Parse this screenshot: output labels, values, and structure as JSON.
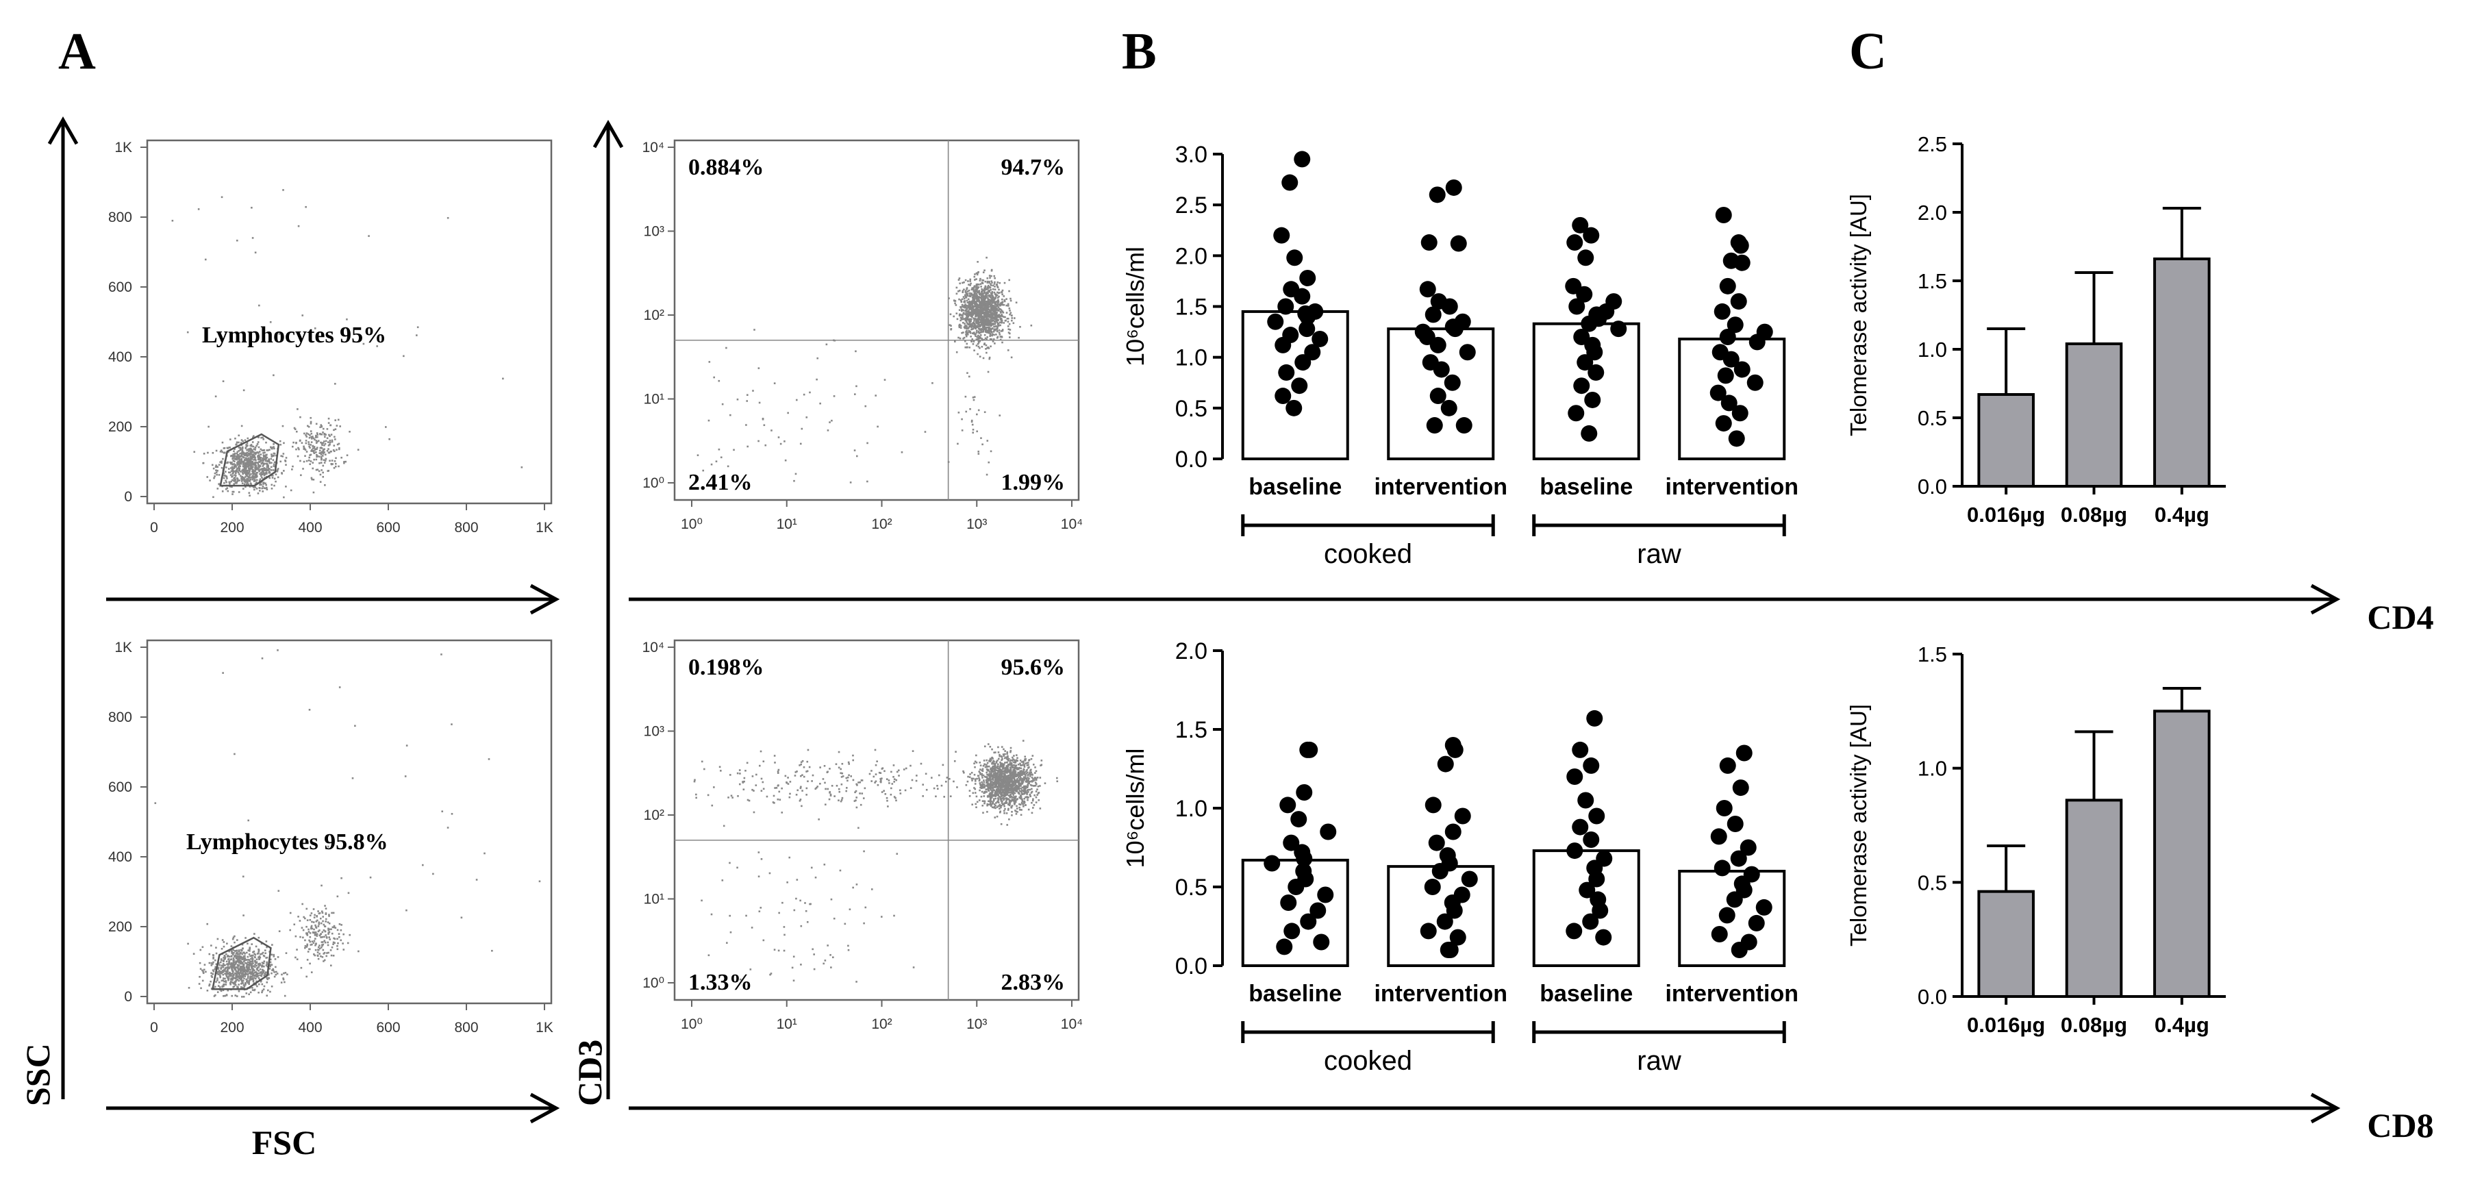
{
  "panels": {
    "a": "A",
    "b": "B",
    "c": "C"
  },
  "axis_titles": {
    "ssc": "SSC",
    "fsc": "FSC",
    "cd3": "CD3",
    "cd4": "CD4",
    "cd8": "CD8"
  },
  "chart_data": [
    {
      "id": "A-scatter-fsc-ssc-cd4",
      "type": "scatter",
      "title": "",
      "xlabel": "FSC",
      "ylabel": "SSC",
      "xlim": [
        0,
        1000
      ],
      "ylim": [
        0,
        1000
      ],
      "xticks": [
        "0",
        "200",
        "400",
        "600",
        "800",
        "1K"
      ],
      "yticks": [
        "0",
        "200",
        "400",
        "600",
        "800",
        "1K"
      ],
      "annotations": [
        "Lymphocytes 95%"
      ],
      "clusters": [
        {
          "cx": 240,
          "cy": 90,
          "sx": 40,
          "sy": 35,
          "n": 800
        },
        {
          "cx": 420,
          "cy": 140,
          "sx": 30,
          "sy": 40,
          "n": 220
        },
        {
          "cx": 400,
          "cy": 350,
          "sx": 300,
          "sy": 320,
          "n": 60
        }
      ]
    },
    {
      "id": "A-scatter-fsc-ssc-cd8",
      "type": "scatter",
      "title": "",
      "xlabel": "FSC",
      "ylabel": "SSC",
      "xlim": [
        0,
        1000
      ],
      "ylim": [
        0,
        1000
      ],
      "xticks": [
        "0",
        "200",
        "400",
        "600",
        "800",
        "1K"
      ],
      "yticks": [
        "0",
        "200",
        "400",
        "600",
        "800",
        "1K"
      ],
      "annotations": [
        "Lymphocytes 95.8%"
      ],
      "clusters": [
        {
          "cx": 220,
          "cy": 80,
          "sx": 40,
          "sy": 35,
          "n": 800
        },
        {
          "cx": 420,
          "cy": 180,
          "sx": 30,
          "sy": 40,
          "n": 200
        },
        {
          "cx": 450,
          "cy": 450,
          "sx": 300,
          "sy": 320,
          "n": 60
        }
      ]
    },
    {
      "id": "A-quadrant-cd3-cd4",
      "type": "scatter",
      "xlabel": "CD4",
      "ylabel": "CD3",
      "xlim": [
        0,
        4
      ],
      "ylim": [
        0,
        4
      ],
      "scale": "log",
      "xticks": [
        "10⁰",
        "10¹",
        "10²",
        "10³",
        "10⁴"
      ],
      "yticks": [
        "10⁰",
        "10¹",
        "10²",
        "10³",
        "10⁴"
      ],
      "quadrants": {
        "upper_left": "0.884%",
        "upper_right": "94.7%",
        "lower_left": "2.41%",
        "lower_right": "1.99%"
      },
      "gate": {
        "x": 2.7,
        "y": 1.7
      },
      "clusters": [
        {
          "cx": 3.05,
          "cy": 2.05,
          "sx": 0.12,
          "sy": 0.18,
          "n": 1400
        },
        {
          "cx": 1.0,
          "cy": 0.6,
          "sx": 0.7,
          "sy": 0.5,
          "n": 90
        },
        {
          "cx": 3.0,
          "cy": 0.8,
          "sx": 0.12,
          "sy": 0.3,
          "n": 30
        }
      ]
    },
    {
      "id": "A-quadrant-cd3-cd8",
      "type": "scatter",
      "xlabel": "CD8",
      "ylabel": "CD3",
      "xlim": [
        0,
        4
      ],
      "ylim": [
        0,
        4
      ],
      "scale": "log",
      "xticks": [
        "10⁰",
        "10¹",
        "10²",
        "10³",
        "10⁴"
      ],
      "yticks": [
        "10⁰",
        "10¹",
        "10²",
        "10³",
        "10⁴"
      ],
      "quadrants": {
        "upper_left": "0.198%",
        "upper_right": "95.6%",
        "lower_left": "1.33%",
        "lower_right": "2.83%"
      },
      "gate": {
        "x": 2.7,
        "y": 1.7
      },
      "clusters": [
        {
          "cx": 3.3,
          "cy": 2.4,
          "sx": 0.15,
          "sy": 0.15,
          "n": 1400
        },
        {
          "cx": 1.6,
          "cy": 2.4,
          "sx": 0.8,
          "sy": 0.15,
          "n": 260
        },
        {
          "cx": 1.0,
          "cy": 0.7,
          "sx": 0.6,
          "sy": 0.5,
          "n": 90
        }
      ]
    },
    {
      "id": "B-CD4",
      "type": "bar",
      "ylabel": "10⁶cells/ml",
      "ylim": [
        0,
        3.0
      ],
      "yticks": [
        "0.0",
        "0.5",
        "1.0",
        "1.5",
        "2.0",
        "2.5",
        "3.0"
      ],
      "categories": [
        "baseline",
        "intervention",
        "baseline",
        "intervention"
      ],
      "groups": [
        {
          "label": "cooked",
          "span": [
            0,
            1
          ]
        },
        {
          "label": "raw",
          "span": [
            2,
            3
          ]
        }
      ],
      "values": [
        1.45,
        1.28,
        1.33,
        1.18
      ],
      "points": [
        [
          2.95,
          2.72,
          2.2,
          1.98,
          1.78,
          1.67,
          1.6,
          1.5,
          1.45,
          1.43,
          1.4,
          1.35,
          1.28,
          1.22,
          1.18,
          1.12,
          1.05,
          0.95,
          0.85,
          0.72,
          0.62,
          0.5
        ],
        [
          2.67,
          2.6,
          2.13,
          2.12,
          1.67,
          1.55,
          1.5,
          1.42,
          1.35,
          1.3,
          1.28,
          1.25,
          1.2,
          1.12,
          1.05,
          0.95,
          0.88,
          0.75,
          0.62,
          0.5,
          0.33,
          0.33
        ],
        [
          2.3,
          2.2,
          2.13,
          1.98,
          1.7,
          1.62,
          1.55,
          1.5,
          1.45,
          1.42,
          1.38,
          1.33,
          1.28,
          1.2,
          1.12,
          1.05,
          0.95,
          0.85,
          0.72,
          0.58,
          0.45,
          0.25
        ],
        [
          2.4,
          2.13,
          2.1,
          1.95,
          1.93,
          1.7,
          1.55,
          1.45,
          1.32,
          1.25,
          1.2,
          1.15,
          1.05,
          0.98,
          0.88,
          0.82,
          0.75,
          0.65,
          0.55,
          0.45,
          0.35,
          0.2
        ]
      ]
    },
    {
      "id": "B-CD8",
      "type": "bar",
      "ylabel": "10⁶cells/ml",
      "ylim": [
        0,
        2.0
      ],
      "yticks": [
        "0.0",
        "0.5",
        "1.0",
        "1.5",
        "2.0"
      ],
      "categories": [
        "baseline",
        "intervention",
        "baseline",
        "intervention"
      ],
      "groups": [
        {
          "label": "cooked",
          "span": [
            0,
            1
          ]
        },
        {
          "label": "raw",
          "span": [
            2,
            3
          ]
        }
      ],
      "values": [
        0.67,
        0.63,
        0.73,
        0.6
      ],
      "points": [
        [
          1.37,
          1.37,
          1.1,
          1.02,
          0.93,
          0.85,
          0.78,
          0.72,
          0.68,
          0.65,
          0.6,
          0.55,
          0.5,
          0.45,
          0.4,
          0.35,
          0.28,
          0.22,
          0.15,
          0.12
        ],
        [
          1.4,
          1.37,
          1.28,
          1.02,
          0.95,
          0.85,
          0.78,
          0.7,
          0.65,
          0.6,
          0.55,
          0.5,
          0.45,
          0.4,
          0.35,
          0.28,
          0.22,
          0.18,
          0.1,
          0.1
        ],
        [
          1.57,
          1.37,
          1.27,
          1.2,
          1.05,
          0.95,
          0.88,
          0.8,
          0.73,
          0.68,
          0.62,
          0.55,
          0.48,
          0.42,
          0.35,
          0.28,
          0.22,
          0.18
        ],
        [
          1.35,
          1.27,
          1.13,
          1.0,
          0.9,
          0.82,
          0.75,
          0.68,
          0.62,
          0.58,
          0.52,
          0.48,
          0.42,
          0.37,
          0.32,
          0.27,
          0.2,
          0.15,
          0.1
        ]
      ]
    },
    {
      "id": "C-CD4",
      "type": "bar",
      "ylabel": "Telomerase activity [AU]",
      "ylim": [
        0,
        2.5
      ],
      "yticks": [
        "0.0",
        "0.5",
        "1.0",
        "1.5",
        "2.0",
        "2.5"
      ],
      "categories": [
        "0.016µg",
        "0.08µg",
        "0.4µg"
      ],
      "values": [
        0.67,
        1.04,
        1.66
      ],
      "errors": [
        0.48,
        0.52,
        0.37
      ]
    },
    {
      "id": "C-CD8",
      "type": "bar",
      "ylabel": "Telomerase activity [AU]",
      "ylim": [
        0,
        1.5
      ],
      "yticks": [
        "0.0",
        "0.5",
        "1.0",
        "1.5"
      ],
      "categories": [
        "0.016µg",
        "0.08µg",
        "0.4µg"
      ],
      "values": [
        0.46,
        0.86,
        1.25
      ],
      "errors": [
        0.2,
        0.3,
        0.1
      ]
    }
  ]
}
